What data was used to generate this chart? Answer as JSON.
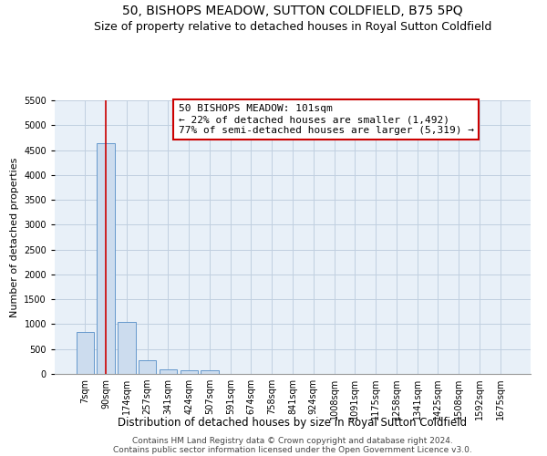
{
  "title": "50, BISHOPS MEADOW, SUTTON COLDFIELD, B75 5PQ",
  "subtitle": "Size of property relative to detached houses in Royal Sutton Coldfield",
  "xlabel": "Distribution of detached houses by size in Royal Sutton Coldfield",
  "ylabel": "Number of detached properties",
  "bar_labels": [
    "7sqm",
    "90sqm",
    "174sqm",
    "257sqm",
    "341sqm",
    "424sqm",
    "507sqm",
    "591sqm",
    "674sqm",
    "758sqm",
    "841sqm",
    "924sqm",
    "1008sqm",
    "1091sqm",
    "1175sqm",
    "1258sqm",
    "1341sqm",
    "1425sqm",
    "1508sqm",
    "1592sqm",
    "1675sqm"
  ],
  "bar_values": [
    840,
    4640,
    1040,
    280,
    95,
    65,
    65,
    0,
    0,
    0,
    0,
    0,
    0,
    0,
    0,
    0,
    0,
    0,
    0,
    0,
    0
  ],
  "bar_color": "#ccdcee",
  "bar_edgecolor": "#6699cc",
  "grid_color": "#c0cfe0",
  "background_color": "#e8f0f8",
  "ylim": [
    0,
    5500
  ],
  "yticks": [
    0,
    500,
    1000,
    1500,
    2000,
    2500,
    3000,
    3500,
    4000,
    4500,
    5000,
    5500
  ],
  "property_line_x": 1.0,
  "property_line_color": "#cc0000",
  "annotation_text": "50 BISHOPS MEADOW: 101sqm\n← 22% of detached houses are smaller (1,492)\n77% of semi-detached houses are larger (5,319) →",
  "annotation_box_color": "#cc0000",
  "footnote1": "Contains HM Land Registry data © Crown copyright and database right 2024.",
  "footnote2": "Contains public sector information licensed under the Open Government Licence v3.0.",
  "title_fontsize": 10,
  "subtitle_fontsize": 9,
  "annotation_fontsize": 8,
  "tick_fontsize": 7,
  "ylabel_fontsize": 8,
  "xlabel_fontsize": 8.5,
  "footnote_fontsize": 6.5
}
